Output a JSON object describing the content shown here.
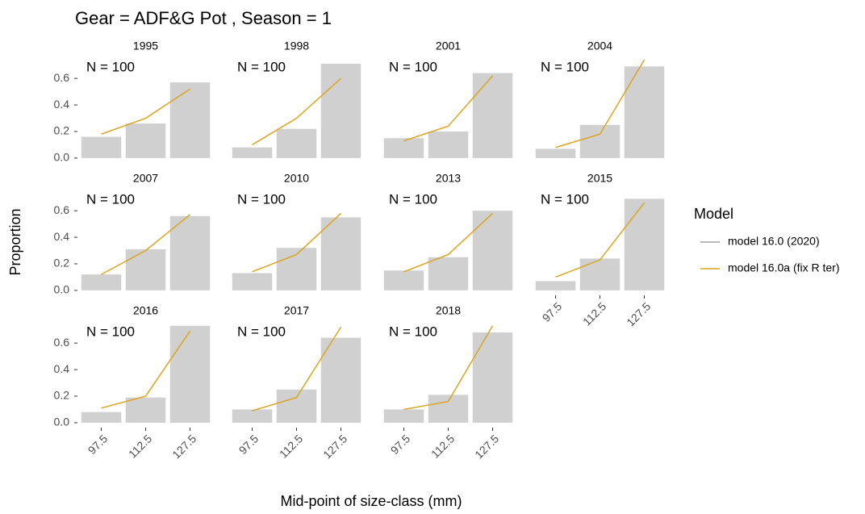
{
  "chart_data": {
    "type": "bar",
    "title": "Gear = ADF&G Pot , Season = 1",
    "x_label": "Mid-point of size-class (mm)",
    "y_label": "Proportion",
    "legend_title": "Model",
    "categories": [
      "97.5",
      "112.5",
      "127.5"
    ],
    "ylim": [
      -0.025,
      0.765
    ],
    "yticks": [
      {
        "value": 0,
        "label": "0.0"
      },
      0.2,
      0.4,
      0.6
    ],
    "bar_color": "#d0d0d0",
    "series": [
      {
        "name": "model 16.0 (2020)",
        "color": "#a0a0a0"
      },
      {
        "name": "model 16.0a (fix R ter)",
        "color": "#daa520"
      }
    ],
    "panels": [
      {
        "title": "1995",
        "annotation": "N = 100",
        "observed": [
          0.16,
          0.26,
          0.57
        ],
        "predicted": [
          0.18,
          0.3,
          0.52
        ]
      },
      {
        "title": "1998",
        "annotation": "N = 100",
        "observed": [
          0.08,
          0.22,
          0.71
        ],
        "predicted": [
          0.1,
          0.3,
          0.6
        ]
      },
      {
        "title": "2001",
        "annotation": "N = 100",
        "observed": [
          0.15,
          0.2,
          0.64
        ],
        "predicted": [
          0.13,
          0.24,
          0.62
        ]
      },
      {
        "title": "2004",
        "annotation": "N = 100",
        "observed": [
          0.07,
          0.25,
          0.69
        ],
        "predicted": [
          0.08,
          0.18,
          0.74
        ]
      },
      {
        "title": "2007",
        "annotation": "N = 100",
        "observed": [
          0.12,
          0.31,
          0.56
        ],
        "predicted": [
          0.12,
          0.3,
          0.57
        ]
      },
      {
        "title": "2010",
        "annotation": "N = 100",
        "observed": [
          0.13,
          0.32,
          0.55
        ],
        "predicted": [
          0.14,
          0.27,
          0.58
        ]
      },
      {
        "title": "2013",
        "annotation": "N = 100",
        "observed": [
          0.15,
          0.25,
          0.6
        ],
        "predicted": [
          0.14,
          0.27,
          0.58
        ]
      },
      {
        "title": "2015",
        "annotation": "N = 100",
        "observed": [
          0.07,
          0.24,
          0.69
        ],
        "predicted": [
          0.1,
          0.23,
          0.66
        ]
      },
      {
        "title": "2016",
        "annotation": "N = 100",
        "observed": [
          0.08,
          0.19,
          0.73
        ],
        "predicted": [
          0.11,
          0.2,
          0.69
        ]
      },
      {
        "title": "2017",
        "annotation": "N = 100",
        "observed": [
          0.1,
          0.25,
          0.64
        ],
        "predicted": [
          0.09,
          0.19,
          0.72
        ]
      },
      {
        "title": "2018",
        "annotation": "N = 100",
        "observed": [
          0.1,
          0.21,
          0.68
        ],
        "predicted": [
          0.1,
          0.16,
          0.73
        ]
      }
    ]
  }
}
